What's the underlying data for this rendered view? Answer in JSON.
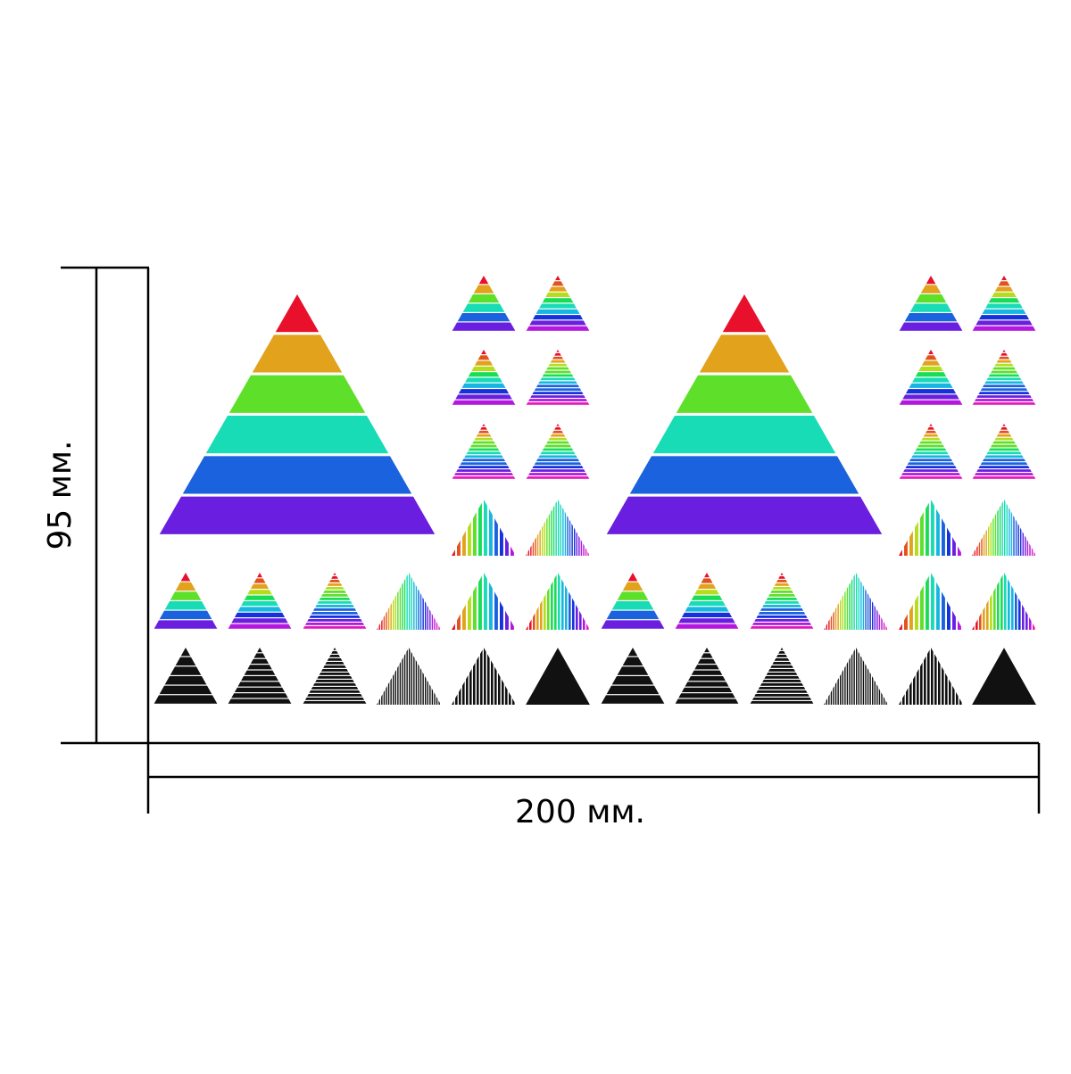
{
  "dimensions": {
    "width_label": "200 мм.",
    "height_label": "95 мм."
  },
  "stripe_palette": [
    "#e8102a",
    "#e3521c",
    "#e2a21c",
    "#b5dd1a",
    "#5ee02a",
    "#19dd55",
    "#18dcb6",
    "#16b6e0",
    "#1a62de",
    "#1531dc",
    "#6a1fe0",
    "#b418df",
    "#e21abc"
  ],
  "black_color": "#111111",
  "rows": {
    "color_row_styles": [
      "coarse-h",
      "medium-h",
      "fine-h",
      "fine-v",
      "coarse-v",
      "medium-v",
      "coarse-h",
      "medium-h",
      "fine-h",
      "fine-v",
      "coarse-v",
      "medium-v"
    ],
    "black_row_styles": [
      "coarse-h",
      "medium-h",
      "fine-h",
      "fine-v",
      "medium-v",
      "solid",
      "coarse-h",
      "medium-h",
      "fine-h",
      "fine-v",
      "medium-v",
      "solid"
    ]
  },
  "small_grid_styles": [
    "coarse-h",
    "medium-h",
    "medium-h",
    "fine-h",
    "fine-h",
    "fine-h",
    "coarse-v",
    "fine-v"
  ]
}
